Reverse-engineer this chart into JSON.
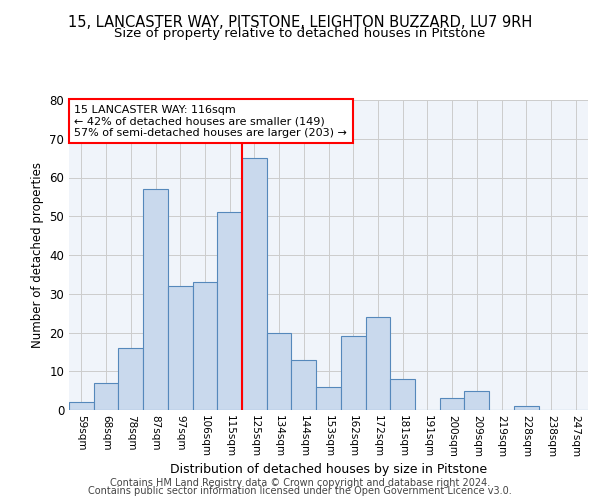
{
  "title1": "15, LANCASTER WAY, PITSTONE, LEIGHTON BUZZARD, LU7 9RH",
  "title2": "Size of property relative to detached houses in Pitstone",
  "xlabel": "Distribution of detached houses by size in Pitstone",
  "ylabel": "Number of detached properties",
  "bar_labels": [
    "59sqm",
    "68sqm",
    "78sqm",
    "87sqm",
    "97sqm",
    "106sqm",
    "115sqm",
    "125sqm",
    "134sqm",
    "144sqm",
    "153sqm",
    "162sqm",
    "172sqm",
    "181sqm",
    "191sqm",
    "200sqm",
    "209sqm",
    "219sqm",
    "228sqm",
    "238sqm",
    "247sqm"
  ],
  "bar_values": [
    2,
    7,
    16,
    57,
    32,
    33,
    51,
    65,
    20,
    13,
    6,
    19,
    24,
    8,
    0,
    3,
    5,
    0,
    1,
    0,
    0
  ],
  "bar_color": "#c9d9ed",
  "bar_edge_color": "#5588bb",
  "vline_x_index": 6,
  "vline_color": "red",
  "property_label": "15 LANCASTER WAY: 116sqm",
  "annotation_line1": "← 42% of detached houses are smaller (149)",
  "annotation_line2": "57% of semi-detached houses are larger (203) →",
  "annotation_box_color": "white",
  "annotation_box_edge_color": "red",
  "footer_line1": "Contains HM Land Registry data © Crown copyright and database right 2024.",
  "footer_line2": "Contains public sector information licensed under the Open Government Licence v3.0.",
  "ylim": [
    0,
    80
  ],
  "yticks": [
    0,
    10,
    20,
    30,
    40,
    50,
    60,
    70,
    80
  ],
  "background_color": "#f0f4fa",
  "grid_color": "#cccccc",
  "title1_fontsize": 10.5,
  "title2_fontsize": 9.5,
  "footer_fontsize": 7.0
}
